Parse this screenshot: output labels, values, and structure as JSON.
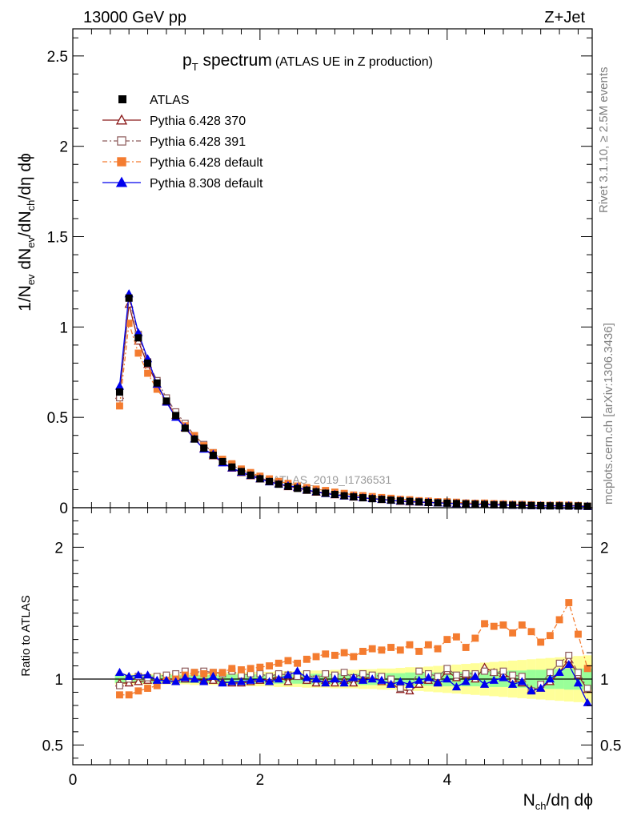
{
  "header": {
    "left_label": "13000 GeV pp",
    "right_label": "Z+Jet"
  },
  "side_labels": {
    "rivet": "Rivet 3.1.10, ≥ 2.5M events",
    "mcplots": "mcplots.cern.ch [arXiv:1306.3436]"
  },
  "watermark": "ATLAS_2019_I1736531",
  "chart_data": {
    "type": "scatter",
    "title": {
      "main": "p",
      "main_sub": "T",
      "main_rest": " spectrum",
      "note": "(ATLAS UE in Z production)"
    },
    "xlabel": {
      "n": "N",
      "n_sub": "ch",
      "rest": "/dη dϕ"
    },
    "ylabel": {
      "p1": "1/N",
      "s1": "ev",
      "p2": " dN",
      "s2": "ev",
      "p3": "/dN",
      "s3": "ch",
      "p4": "/dη dϕ"
    },
    "ratio_ylabel": "Ratio to ATLAS",
    "xlim": [
      0,
      5.55
    ],
    "ylim": [
      0,
      2.65
    ],
    "ratio_ylim": [
      0.35,
      2.3
    ],
    "x_ticks": [
      "0",
      "2",
      "4"
    ],
    "y_ticks": [
      "0",
      "0.5",
      "1",
      "1.5",
      "2",
      "2.5"
    ],
    "ratio_ticks": [
      "0.5",
      "1",
      "2"
    ],
    "x": [
      0.5,
      0.6,
      0.7,
      0.8,
      0.9,
      1.0,
      1.1,
      1.2,
      1.3,
      1.4,
      1.5,
      1.6,
      1.7,
      1.8,
      1.9,
      2.0,
      2.1,
      2.2,
      2.3,
      2.4,
      2.5,
      2.6,
      2.7,
      2.8,
      2.9,
      3.0,
      3.1,
      3.2,
      3.3,
      3.4,
      3.5,
      3.6,
      3.7,
      3.8,
      3.9,
      4.0,
      4.1,
      4.2,
      4.3,
      4.4,
      4.5,
      4.6,
      4.7,
      4.8,
      4.9,
      5.0,
      5.1,
      5.2,
      5.3,
      5.4,
      5.5
    ],
    "data": {
      "name": "ATLAS",
      "values": [
        0.64,
        1.16,
        0.94,
        0.8,
        0.69,
        0.59,
        0.51,
        0.44,
        0.38,
        0.33,
        0.29,
        0.255,
        0.225,
        0.2,
        0.18,
        0.16,
        0.145,
        0.13,
        0.118,
        0.107,
        0.097,
        0.088,
        0.08,
        0.073,
        0.066,
        0.06,
        0.055,
        0.05,
        0.046,
        0.042,
        0.038,
        0.035,
        0.032,
        0.029,
        0.027,
        0.025,
        0.023,
        0.021,
        0.019,
        0.018,
        0.016,
        0.015,
        0.014,
        0.013,
        0.012,
        0.011,
        0.01,
        0.01,
        0.009,
        0.009,
        0.008
      ]
    },
    "series": [
      {
        "name": "Pythia 6.428 370",
        "color": "#8b1a1a",
        "marker": "open-triangle",
        "dash": "solid",
        "ratio": [
          0.97,
          0.97,
          0.98,
          0.99,
          0.99,
          1.0,
          1.0,
          1.0,
          1.0,
          0.99,
          0.99,
          0.98,
          0.97,
          0.97,
          0.98,
          0.99,
          1.0,
          1.02,
          0.98,
          1.03,
          0.99,
          0.97,
          0.99,
          0.97,
          0.99,
          0.97,
          1.0,
          1.02,
          0.98,
          0.97,
          0.92,
          0.91,
          0.96,
          0.99,
          0.98,
          1.06,
          1.01,
          1.03,
          1.0,
          1.09,
          1.05,
          1.04,
          1.0,
          0.97,
          0.92,
          0.93,
          0.98,
          1.05,
          1.15,
          1.03,
          0.92
        ]
      },
      {
        "name": "Pythia 6.428 391",
        "color": "#8c5a5a",
        "marker": "open-square",
        "dash": "dashdot",
        "ratio": [
          0.95,
          1.0,
          1.02,
          1.01,
          1.02,
          1.03,
          1.04,
          1.06,
          1.05,
          1.06,
          1.05,
          1.04,
          1.06,
          1.03,
          1.04,
          1.04,
          1.02,
          1.04,
          1.03,
          1.02,
          1.04,
          1.0,
          1.04,
          1.03,
          1.05,
          1.01,
          1.04,
          1.03,
          1.02,
          1.0,
          0.93,
          0.94,
          1.06,
          1.04,
          1.02,
          1.08,
          1.03,
          1.04,
          1.04,
          1.06,
          1.05,
          1.06,
          1.03,
          1.02,
          0.91,
          0.96,
          1.05,
          1.12,
          1.18,
          1.05,
          0.93
        ]
      },
      {
        "name": "Pythia 6.428 default",
        "color": "#f47c30",
        "marker": "filled-square",
        "dash": "dashdot",
        "ratio": [
          0.88,
          0.88,
          0.91,
          0.93,
          0.95,
          0.99,
          1.0,
          1.03,
          1.05,
          1.04,
          1.05,
          1.05,
          1.08,
          1.07,
          1.08,
          1.09,
          1.1,
          1.12,
          1.14,
          1.12,
          1.15,
          1.17,
          1.19,
          1.18,
          1.2,
          1.17,
          1.21,
          1.23,
          1.22,
          1.24,
          1.22,
          1.26,
          1.21,
          1.26,
          1.23,
          1.3,
          1.32,
          1.24,
          1.31,
          1.42,
          1.4,
          1.41,
          1.35,
          1.41,
          1.36,
          1.28,
          1.33,
          1.45,
          1.58,
          1.34,
          1.08
        ]
      },
      {
        "name": "Pythia 8.308 default",
        "color": "#0000ee",
        "marker": "filled-triangle",
        "dash": "solid",
        "ratio": [
          1.05,
          1.02,
          1.03,
          1.03,
          0.99,
          0.99,
          0.98,
          1.01,
          1.0,
          0.98,
          1.02,
          0.97,
          0.98,
          0.98,
          0.99,
          1.0,
          0.98,
          1.0,
          1.03,
          1.06,
          1.01,
          1.0,
          0.97,
          1.0,
          0.97,
          1.01,
          0.99,
          1.0,
          0.99,
          0.96,
          0.98,
          0.96,
          0.99,
          1.01,
          0.97,
          1.0,
          0.94,
          0.98,
          1.02,
          0.96,
          0.99,
          1.01,
          0.96,
          0.98,
          0.91,
          0.93,
          1.0,
          1.05,
          1.11,
          0.97,
          0.82
        ]
      }
    ],
    "bands": {
      "green": [
        0.03,
        0.03,
        0.03,
        0.03,
        0.03,
        0.03,
        0.03,
        0.03,
        0.03,
        0.03,
        0.03,
        0.035,
        0.035,
        0.035,
        0.035,
        0.035,
        0.035,
        0.035,
        0.035,
        0.035,
        0.04,
        0.04,
        0.04,
        0.04,
        0.04,
        0.04,
        0.045,
        0.045,
        0.045,
        0.045,
        0.045,
        0.05,
        0.05,
        0.05,
        0.05,
        0.055,
        0.055,
        0.055,
        0.055,
        0.06,
        0.06,
        0.06,
        0.065,
        0.065,
        0.07,
        0.07,
        0.075,
        0.075,
        0.08,
        0.08,
        0.08
      ],
      "yellow": [
        0.04,
        0.04,
        0.04,
        0.04,
        0.04,
        0.04,
        0.04,
        0.04,
        0.045,
        0.045,
        0.045,
        0.05,
        0.05,
        0.05,
        0.055,
        0.055,
        0.055,
        0.06,
        0.06,
        0.06,
        0.065,
        0.065,
        0.065,
        0.07,
        0.07,
        0.07,
        0.075,
        0.075,
        0.08,
        0.08,
        0.085,
        0.09,
        0.09,
        0.095,
        0.1,
        0.105,
        0.11,
        0.115,
        0.12,
        0.125,
        0.13,
        0.135,
        0.14,
        0.145,
        0.15,
        0.155,
        0.16,
        0.165,
        0.17,
        0.175,
        0.18
      ]
    },
    "legend_position": "top-left"
  }
}
